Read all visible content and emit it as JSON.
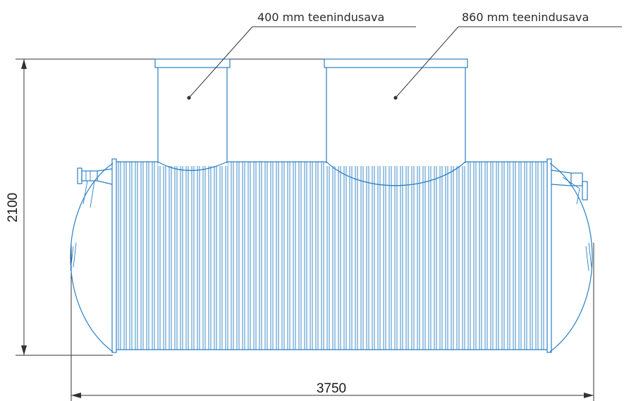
{
  "callouts": {
    "left_label": "400 mm teenindusava",
    "right_label": "860 mm teenindusava"
  },
  "dimensions": {
    "height_label": "2100",
    "width_label": "3750"
  },
  "colors": {
    "tank_blue": "#2a7fc4",
    "dimension_line": "#333333"
  }
}
